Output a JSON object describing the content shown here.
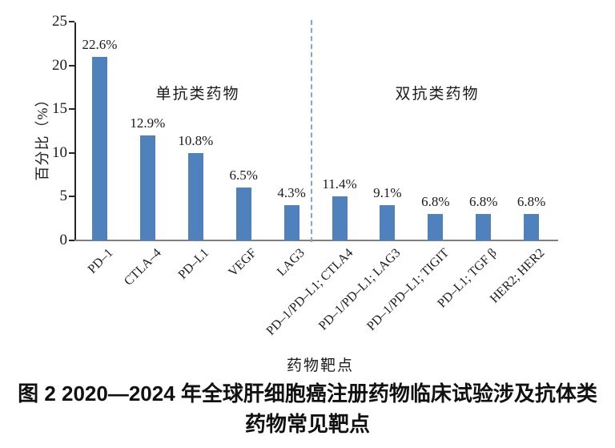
{
  "figure": {
    "caption_line1": "图 2  2020—2024 年全球肝细胞癌注册药物临床试验涉及抗体类",
    "caption_line2": "药物常见靶点"
  },
  "chart_data": {
    "type": "bar",
    "title": "",
    "xlabel": "药物靶点",
    "ylabel": "百分比（%）",
    "ylim": [
      0,
      25
    ],
    "yticks": [
      0,
      5,
      10,
      15,
      20,
      25
    ],
    "grid": false,
    "legend_position": "none",
    "bar_color": "#4F81BD",
    "separator_color": "#7FA8CE",
    "categories": [
      "PD–1",
      "CTLA–4",
      "PD–L1",
      "VEGF",
      "LAG3",
      "PD–1/PD–L1; CTLA4",
      "PD–1/PD–L1; LAG3",
      "PD–1/PD–L1; TIGIT",
      "PD–L1; TGF β",
      "HER2; HER2"
    ],
    "values": [
      22.6,
      12.9,
      10.8,
      6.5,
      4.3,
      11.4,
      9.1,
      6.8,
      6.8,
      6.8
    ],
    "value_labels": [
      "22.6%",
      "12.9%",
      "10.8%",
      "6.5%",
      "4.3%",
      "11.4%",
      "9.1%",
      "6.8%",
      "6.8%",
      "6.8%"
    ],
    "drawn_bar_heights_pct": [
      21,
      12,
      10,
      6,
      4,
      5,
      4,
      3,
      3,
      3
    ],
    "groups": [
      {
        "label": "单抗类药物",
        "categories_span": [
          0,
          4
        ]
      },
      {
        "label": "双抗类药物",
        "categories_span": [
          5,
          9
        ]
      }
    ],
    "separator_after_index": 4
  }
}
